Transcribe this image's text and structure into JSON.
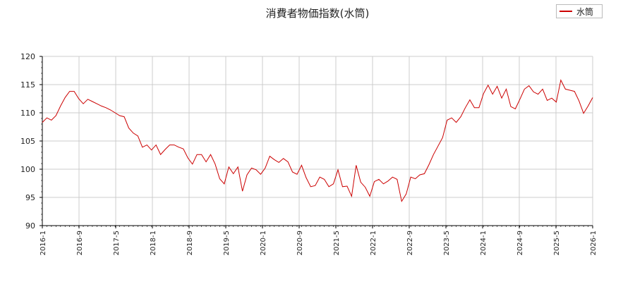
{
  "chart_data": {
    "type": "line",
    "title": "消費者物価指数(水筒)",
    "xlabel": "",
    "ylabel": "",
    "ylim": [
      90,
      120
    ],
    "yticks": [
      "90",
      "95",
      "100",
      "105",
      "110",
      "115",
      "120"
    ],
    "xticks": [
      "2016-1",
      "2016-9",
      "2017-5",
      "2018-1",
      "2018-9",
      "2019-5",
      "2020-1",
      "2020-9",
      "2021-5",
      "2022-1",
      "2022-9",
      "2023-5",
      "2024-1",
      "2024-9",
      "2025-5",
      "2026-1"
    ],
    "grid": true,
    "legend_position": "top-right",
    "series": [
      {
        "name": "水筒",
        "color": "#cc0000",
        "values": [
          108.3,
          109.1,
          108.7,
          109.5,
          111.2,
          112.7,
          113.8,
          113.8,
          112.5,
          111.6,
          112.4,
          112.0,
          111.6,
          111.2,
          110.9,
          110.5,
          110.0,
          109.5,
          109.3,
          107.3,
          106.4,
          105.9,
          103.9,
          104.3,
          103.4,
          104.3,
          102.6,
          103.5,
          104.3,
          104.3,
          103.9,
          103.6,
          102.0,
          100.9,
          102.6,
          102.6,
          101.3,
          102.6,
          100.9,
          98.3,
          97.4,
          100.4,
          99.2,
          100.4,
          96.1,
          99.0,
          100.2,
          99.9,
          99.1,
          100.2,
          102.3,
          101.7,
          101.2,
          101.9,
          101.3,
          99.5,
          99.1,
          100.7,
          98.5,
          96.9,
          97.1,
          98.6,
          98.2,
          96.9,
          97.4,
          99.9,
          96.9,
          97.0,
          95.2,
          100.7,
          97.7,
          96.8,
          95.2,
          97.8,
          98.2,
          97.4,
          97.9,
          98.6,
          98.2,
          94.3,
          95.6,
          98.6,
          98.3,
          99.0,
          99.2,
          100.8,
          102.6,
          104.1,
          105.6,
          108.7,
          109.1,
          108.3,
          109.3,
          110.9,
          112.3,
          110.9,
          110.9,
          113.4,
          114.9,
          113.3,
          114.7,
          112.6,
          114.2,
          111.1,
          110.7,
          112.4,
          114.2,
          114.8,
          113.7,
          113.3,
          114.2,
          112.2,
          112.6,
          111.9,
          115.8,
          114.2,
          114.0,
          113.8,
          112.1,
          109.9,
          111.2,
          112.7
        ]
      }
    ]
  }
}
